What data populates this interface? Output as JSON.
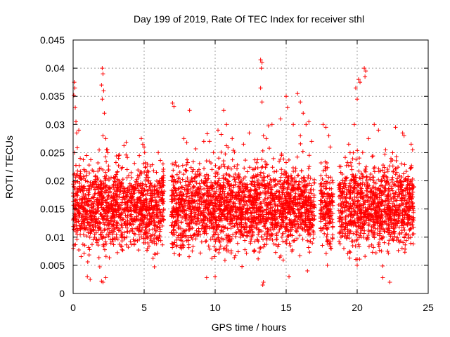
{
  "chart_data": {
    "type": "scatter",
    "title": "Day 199 of 2019, Rate Of TEC Index for receiver sthl",
    "xlabel": "GPS time / hours",
    "ylabel": "ROTI / TECUs",
    "xlim": [
      0,
      25
    ],
    "ylim": [
      0,
      0.045
    ],
    "xticks": [
      0,
      5,
      10,
      15,
      20,
      25
    ],
    "xtick_labels": [
      "0",
      "5",
      "10",
      "15",
      "20",
      "25"
    ],
    "yticks": [
      0,
      0.005,
      0.01,
      0.015,
      0.02,
      0.025,
      0.03,
      0.035,
      0.04,
      0.045
    ],
    "ytick_labels": [
      "0",
      "0.005",
      "0.01",
      "0.015",
      "0.02",
      "0.025",
      "0.03",
      "0.035",
      "0.04",
      "0.045"
    ],
    "grid": true,
    "marker": "+",
    "marker_color": "#ff0000",
    "coverage_hours": [
      [
        0,
        6.4
      ],
      [
        6.9,
        17.0
      ],
      [
        17.4,
        18.3
      ],
      [
        18.7,
        24.0
      ]
    ],
    "series": [
      {
        "name": "sthl",
        "points": [
          [
            0.05,
            0.0352
          ],
          [
            0.08,
            0.0375
          ],
          [
            0.12,
            0.0365
          ],
          [
            0.15,
            0.033
          ],
          [
            0.2,
            0.0305
          ],
          [
            0.1,
            0.025
          ],
          [
            0.3,
            0.021
          ],
          [
            0.4,
            0.029
          ],
          [
            0.25,
            0.0285
          ],
          [
            0.5,
            0.024
          ],
          [
            2.05,
            0.04
          ],
          [
            2.1,
            0.039
          ],
          [
            2.0,
            0.037
          ],
          [
            2.15,
            0.036
          ],
          [
            2.05,
            0.0345
          ],
          [
            2.2,
            0.032
          ],
          [
            2.1,
            0.028
          ],
          [
            2.3,
            0.0275
          ],
          [
            2.35,
            0.0255
          ],
          [
            2.45,
            0.025
          ],
          [
            1.0,
            0.003
          ],
          [
            1.2,
            0.0025
          ],
          [
            2.0,
            0.0022
          ],
          [
            2.1,
            0.002
          ],
          [
            2.3,
            0.0028
          ],
          [
            4.8,
            0.0275
          ],
          [
            4.9,
            0.0265
          ],
          [
            5.0,
            0.026
          ],
          [
            3.2,
            0.024
          ],
          [
            3.8,
            0.022
          ],
          [
            7.0,
            0.0338
          ],
          [
            7.1,
            0.0332
          ],
          [
            8.2,
            0.0325
          ],
          [
            7.8,
            0.0275
          ],
          [
            8.0,
            0.0268
          ],
          [
            9.2,
            0.027
          ],
          [
            9.6,
            0.027
          ],
          [
            10.2,
            0.029
          ],
          [
            10.6,
            0.0325
          ],
          [
            10.8,
            0.03
          ],
          [
            11.2,
            0.0275
          ],
          [
            12.0,
            0.0265
          ],
          [
            12.4,
            0.0285
          ],
          [
            13.2,
            0.0415
          ],
          [
            13.25,
            0.04
          ],
          [
            13.3,
            0.041
          ],
          [
            13.2,
            0.0365
          ],
          [
            13.3,
            0.034
          ],
          [
            13.4,
            0.028
          ],
          [
            13.6,
            0.0275
          ],
          [
            13.35,
            0.0015
          ],
          [
            13.4,
            0.002
          ],
          [
            14.0,
            0.03
          ],
          [
            14.6,
            0.031
          ],
          [
            15.0,
            0.035
          ],
          [
            15.1,
            0.033
          ],
          [
            15.5,
            0.03
          ],
          [
            15.8,
            0.0355
          ],
          [
            16.0,
            0.034
          ],
          [
            16.2,
            0.032
          ],
          [
            16.4,
            0.03
          ],
          [
            16.0,
            0.028
          ],
          [
            16.6,
            0.0305
          ],
          [
            16.8,
            0.027
          ],
          [
            17.6,
            0.03
          ],
          [
            17.8,
            0.0295
          ],
          [
            18.0,
            0.028
          ],
          [
            18.1,
            0.026
          ],
          [
            19.4,
            0.0265
          ],
          [
            19.5,
            0.025
          ],
          [
            19.8,
            0.03
          ],
          [
            20.0,
            0.0345
          ],
          [
            20.1,
            0.038
          ],
          [
            20.2,
            0.0375
          ],
          [
            19.9,
            0.0365
          ],
          [
            20.5,
            0.04
          ],
          [
            20.6,
            0.0395
          ],
          [
            20.55,
            0.0385
          ],
          [
            20.8,
            0.0275
          ],
          [
            21.2,
            0.03
          ],
          [
            21.5,
            0.029
          ],
          [
            22.0,
            0.0255
          ],
          [
            22.5,
            0.025
          ],
          [
            23.2,
            0.0285
          ],
          [
            23.3,
            0.028
          ],
          [
            23.8,
            0.0265
          ],
          [
            23.9,
            0.0255
          ],
          [
            20.0,
            0.005
          ],
          [
            21.8,
            0.0028
          ],
          [
            22.3,
            0.002
          ],
          [
            10.0,
            0.003
          ],
          [
            9.4,
            0.0028
          ],
          [
            15.2,
            0.003
          ],
          [
            16.5,
            0.004
          ],
          [
            17.9,
            0.005
          ]
        ]
      }
    ]
  }
}
